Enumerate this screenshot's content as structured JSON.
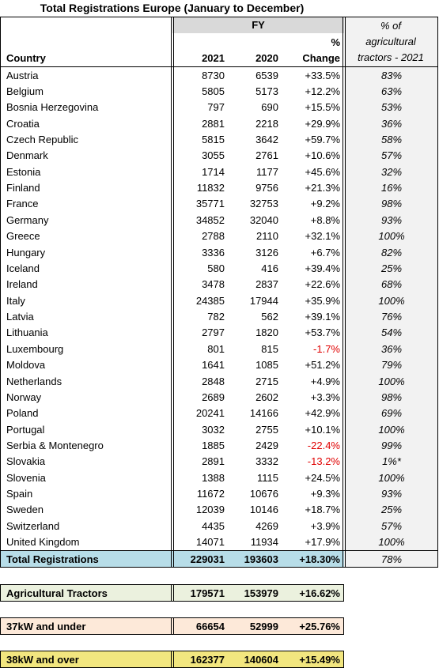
{
  "title": "Total Registrations Europe (January to December)",
  "header": {
    "fy": "FY",
    "country": "Country",
    "year1": "2021",
    "year2": "2020",
    "change": [
      "%",
      "Change"
    ],
    "share": [
      "% of",
      "agricultural",
      "tractors - 2021"
    ]
  },
  "rows": [
    [
      "Austria",
      8730,
      6539,
      "+33.5%",
      "83%"
    ],
    [
      "Belgium",
      5805,
      5173,
      "+12.2%",
      "63%"
    ],
    [
      "Bosnia Herzegovina",
      797,
      690,
      "+15.5%",
      "53%"
    ],
    [
      "Croatia",
      2881,
      2218,
      "+29.9%",
      "36%"
    ],
    [
      "Czech Republic",
      5815,
      3642,
      "+59.7%",
      "58%"
    ],
    [
      "Denmark",
      3055,
      2761,
      "+10.6%",
      "57%"
    ],
    [
      "Estonia",
      1714,
      1177,
      "+45.6%",
      "32%"
    ],
    [
      "Finland",
      11832,
      9756,
      "+21.3%",
      "16%"
    ],
    [
      "France",
      35771,
      32753,
      "+9.2%",
      "98%"
    ],
    [
      "Germany",
      34852,
      32040,
      "+8.8%",
      "93%"
    ],
    [
      "Greece",
      2788,
      2110,
      "+32.1%",
      "100%"
    ],
    [
      "Hungary",
      3336,
      3126,
      "+6.7%",
      "82%"
    ],
    [
      "Iceland",
      580,
      416,
      "+39.4%",
      "25%"
    ],
    [
      "Ireland",
      3478,
      2837,
      "+22.6%",
      "68%"
    ],
    [
      "Italy",
      24385,
      17944,
      "+35.9%",
      "100%"
    ],
    [
      "Latvia",
      782,
      562,
      "+39.1%",
      "76%"
    ],
    [
      "Lithuania",
      2797,
      1820,
      "+53.7%",
      "54%"
    ],
    [
      "Luxembourg",
      801,
      815,
      "-1.7%",
      "36%"
    ],
    [
      "Moldova",
      1641,
      1085,
      "+51.2%",
      "79%"
    ],
    [
      "Netherlands",
      2848,
      2715,
      "+4.9%",
      "100%"
    ],
    [
      "Norway",
      2689,
      2602,
      "+3.3%",
      "98%"
    ],
    [
      "Poland",
      20241,
      14166,
      "+42.9%",
      "69%"
    ],
    [
      "Portugal",
      3032,
      2755,
      "+10.1%",
      "100%"
    ],
    [
      "Serbia & Montenegro",
      1885,
      2429,
      "-22.4%",
      "99%"
    ],
    [
      "Slovakia",
      2891,
      3332,
      "-13.2%",
      "1%*"
    ],
    [
      "Slovenia",
      1388,
      1115,
      "+24.5%",
      "100%"
    ],
    [
      "Spain",
      11672,
      10676,
      "+9.3%",
      "93%"
    ],
    [
      "Sweden",
      12039,
      10146,
      "+18.7%",
      "25%"
    ],
    [
      "Switzerland",
      4435,
      4269,
      "+3.9%",
      "57%"
    ],
    [
      "United Kingdom",
      14071,
      11934,
      "+17.9%",
      "100%"
    ]
  ],
  "total": [
    "Total Registrations",
    229031,
    193603,
    "+18.30%",
    "78%"
  ],
  "summary": [
    [
      "Agricultural Tractors",
      179571,
      153979,
      "+16.62%"
    ],
    [
      "37kW and under",
      66654,
      52999,
      "+25.76%"
    ],
    [
      "38kW and over",
      162377,
      140604,
      "+15.49%"
    ]
  ]
}
